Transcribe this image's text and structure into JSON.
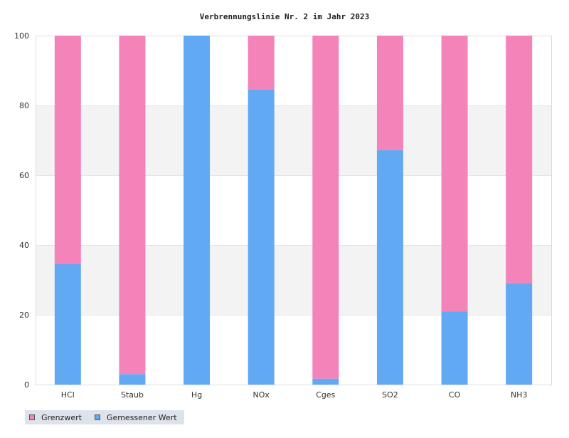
{
  "chart_data": {
    "type": "bar",
    "stacked": true,
    "title": "Verbrennungslinie Nr. 2 im Jahr 2023",
    "categories": [
      "HCl",
      "Staub",
      "Hg",
      "NOx",
      "Cges",
      "SO2",
      "CO",
      "NH3"
    ],
    "series": [
      {
        "name": "Grenzwert",
        "color": "#f383b9",
        "values": [
          65.5,
          97,
          0,
          15.5,
          98.3,
          32.8,
          79,
          71
        ]
      },
      {
        "name": "Gemessener Wert",
        "color": "#62a9f4",
        "values": [
          34.5,
          3,
          100,
          84.5,
          1.7,
          67.2,
          21,
          29
        ]
      }
    ],
    "ylim": [
      0,
      100
    ],
    "yticks": [
      0,
      20,
      40,
      60,
      80,
      100
    ],
    "grid": true,
    "legend_position": "bottom-left"
  }
}
